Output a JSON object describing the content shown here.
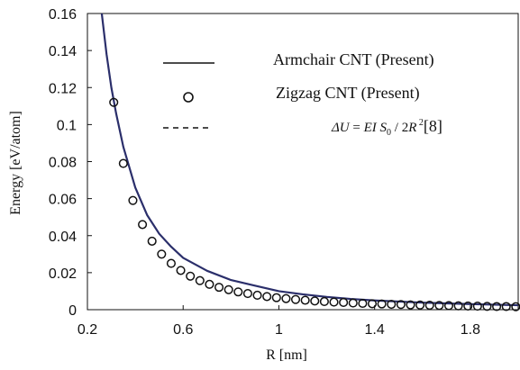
{
  "chart_data": {
    "type": "line",
    "xlabel": "R [nm]",
    "ylabel": "Energy [eV/atom]",
    "xlim": [
      0.2,
      2.0
    ],
    "ylim": [
      0,
      0.16
    ],
    "x_ticks": [
      "0.2",
      "0.6",
      "1",
      "1.4",
      "1.8"
    ],
    "y_ticks": [
      "0",
      "0.02",
      "0.04",
      "0.06",
      "0.08",
      "0.1",
      "0.12",
      "0.14",
      "0.16"
    ],
    "grid": false,
    "legend_position": "top-right",
    "legend": {
      "armchair": "Armchair CNT (Present)",
      "zigzag": "Zigzag CNT (Present)",
      "formula": "ΔU = EI S₀ / 2R² [8]"
    },
    "series": [
      {
        "name": "Armchair CNT (Present)",
        "style": "solid-line",
        "x": [
          0.26,
          0.28,
          0.3,
          0.32,
          0.35,
          0.4,
          0.45,
          0.5,
          0.55,
          0.6,
          0.7,
          0.8,
          0.9,
          1.0,
          1.1,
          1.2,
          1.3,
          1.4,
          1.5,
          1.6,
          1.7,
          1.8,
          1.9,
          2.0
        ],
        "values": [
          0.16,
          0.138,
          0.12,
          0.106,
          0.088,
          0.066,
          0.051,
          0.041,
          0.034,
          0.028,
          0.021,
          0.016,
          0.013,
          0.01,
          0.0083,
          0.0069,
          0.0058,
          0.005,
          0.0044,
          0.0038,
          0.0034,
          0.003,
          0.0027,
          0.0024
        ]
      },
      {
        "name": "Zigzag CNT (Present)",
        "style": "circle-markers",
        "x": [
          0.31,
          0.35,
          0.39,
          0.43,
          0.47,
          0.51,
          0.55,
          0.59,
          0.63,
          0.67,
          0.71,
          0.75,
          0.79,
          0.83,
          0.87,
          0.91,
          0.95,
          0.99,
          1.03,
          1.07,
          1.11,
          1.15,
          1.19,
          1.23,
          1.27,
          1.31,
          1.35,
          1.39,
          1.43,
          1.47,
          1.51,
          1.55,
          1.59,
          1.63,
          1.67,
          1.71,
          1.75,
          1.79,
          1.83,
          1.87,
          1.91,
          1.95,
          1.99
        ],
        "values": [
          0.112,
          0.079,
          0.059,
          0.046,
          0.037,
          0.03,
          0.025,
          0.0212,
          0.0181,
          0.0157,
          0.0137,
          0.0121,
          0.0108,
          0.0096,
          0.0087,
          0.0078,
          0.0071,
          0.0065,
          0.006,
          0.0055,
          0.0051,
          0.0047,
          0.0044,
          0.0041,
          0.0039,
          0.0036,
          0.0034,
          0.0032,
          0.0031,
          0.0029,
          0.0028,
          0.0026,
          0.0025,
          0.0024,
          0.0023,
          0.0022,
          0.0021,
          0.002,
          0.0019,
          0.0018,
          0.0017,
          0.0017,
          0.0016
        ]
      },
      {
        "name": "ΔU = EI S₀ / 2R² [8]",
        "style": "dashed-line",
        "x": [
          0.26,
          0.28,
          0.3,
          0.32,
          0.35,
          0.4,
          0.45,
          0.5,
          0.55,
          0.6,
          0.7,
          0.8,
          0.9,
          1.0,
          1.1,
          1.2,
          1.3,
          1.4,
          1.5,
          1.6,
          1.7,
          1.8,
          1.9,
          2.0
        ],
        "values": [
          0.16,
          0.138,
          0.12,
          0.106,
          0.088,
          0.066,
          0.051,
          0.041,
          0.034,
          0.028,
          0.021,
          0.016,
          0.013,
          0.01,
          0.0083,
          0.0069,
          0.0058,
          0.005,
          0.0044,
          0.0038,
          0.0034,
          0.003,
          0.0027,
          0.0024
        ]
      }
    ],
    "colors": {
      "line": "#2b2f6b",
      "markers": "#111111",
      "axes": "#111111"
    }
  }
}
